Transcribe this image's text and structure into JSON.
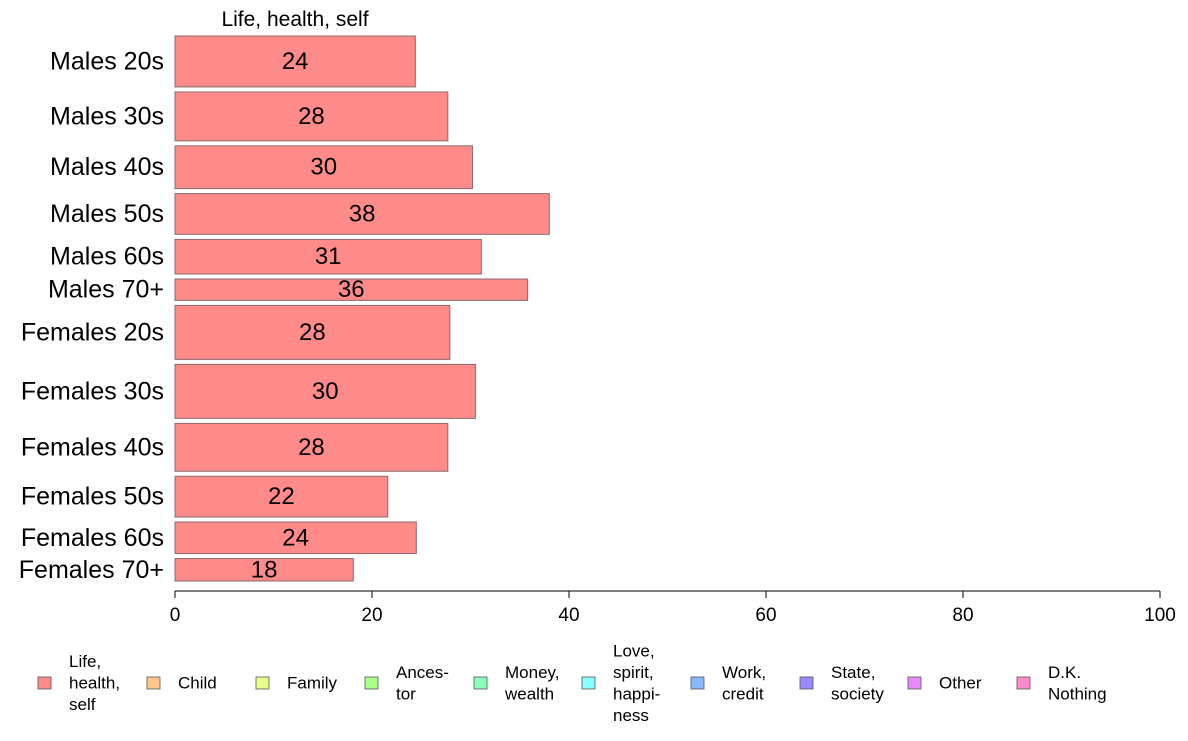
{
  "chart_data": {
    "type": "bar",
    "orientation": "horizontal",
    "panel_title": "Life, health, self",
    "categories": [
      "Males 20s",
      "Males 30s",
      "Males 40s",
      "Males 50s",
      "Males 60s",
      "Males 70+",
      "Females 20s",
      "Females 30s",
      "Females 40s",
      "Females 50s",
      "Females 60s",
      "Females 70+"
    ],
    "row_weights": [
      50,
      48,
      42,
      40,
      34,
      21,
      53,
      53,
      47,
      40,
      31,
      22
    ],
    "series": [
      {
        "name": "Life, health, self",
        "color": "#ff8a8a",
        "values": [
          24.4,
          27.7,
          30.2,
          38,
          31.1,
          35.8,
          27.9,
          30.5,
          27.7,
          21.6,
          24.5,
          18.1
        ],
        "labels": [
          "24",
          "28",
          "30",
          "38",
          "31",
          "36",
          "28",
          "30",
          "28",
          "22",
          "24",
          "18"
        ]
      }
    ],
    "xlim": [
      0,
      100
    ],
    "xticks": [
      "0",
      "20",
      "40",
      "60",
      "80",
      "100"
    ],
    "legend": {
      "position": "bottom",
      "items": [
        {
          "lines": [
            "Life,",
            "health,",
            "self"
          ],
          "color": "#ff8a8a"
        },
        {
          "lines": [
            "Child"
          ],
          "color": "#ffc78a"
        },
        {
          "lines": [
            "Family"
          ],
          "color": "#e8ff8a"
        },
        {
          "lines": [
            "Ances-",
            "tor"
          ],
          "color": "#a8ff8a"
        },
        {
          "lines": [
            "Money,",
            "wealth"
          ],
          "color": "#8affb8"
        },
        {
          "lines": [
            "Love,",
            "spirit,",
            "happi-",
            "ness"
          ],
          "color": "#8affff"
        },
        {
          "lines": [
            "Work,",
            "credit"
          ],
          "color": "#8ab8ff"
        },
        {
          "lines": [
            "State,",
            "society"
          ],
          "color": "#9a8aff"
        },
        {
          "lines": [
            "Other"
          ],
          "color": "#e88aff"
        },
        {
          "lines": [
            "D.K.",
            "Nothing"
          ],
          "color": "#ff8ad0"
        }
      ]
    }
  }
}
